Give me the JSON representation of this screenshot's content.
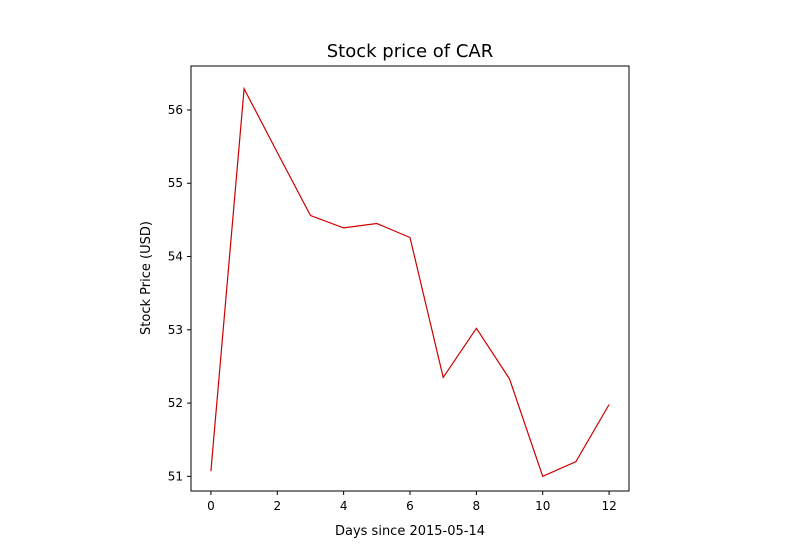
{
  "chart_data": {
    "type": "line",
    "title": "Stock price of CAR",
    "xlabel": "Days since 2015-05-14",
    "ylabel": "Stock Price (USD)",
    "xlim": [
      -0.6,
      12.6
    ],
    "ylim": [
      50.8,
      56.6
    ],
    "xticks": [
      0,
      2,
      4,
      6,
      8,
      10,
      12
    ],
    "yticks": [
      51,
      52,
      53,
      54,
      55,
      56
    ],
    "grid": false,
    "legend": "none",
    "series": [
      {
        "color": "#cc0000",
        "x": [
          0,
          1,
          2,
          3,
          4,
          5,
          6,
          7,
          8,
          9,
          10,
          11,
          12
        ],
        "y": [
          51.07,
          56.29,
          55.42,
          54.56,
          54.39,
          54.45,
          54.26,
          52.35,
          53.02,
          52.33,
          51.0,
          51.2,
          51.98
        ]
      }
    ]
  }
}
